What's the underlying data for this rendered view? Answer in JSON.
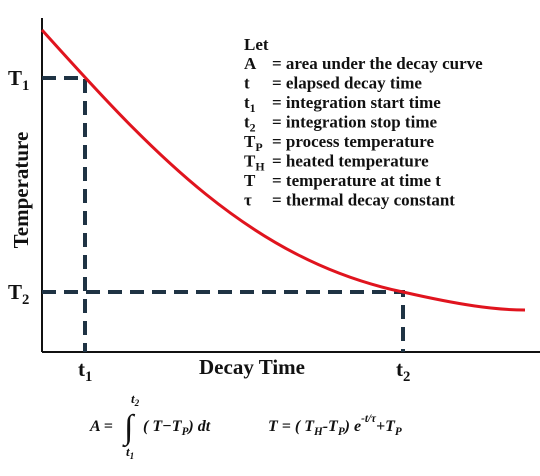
{
  "y_axis": {
    "label": "Temperature",
    "tick_1": {
      "symbol": "T",
      "sub": "1"
    },
    "tick_2": {
      "symbol": "T",
      "sub": "2"
    }
  },
  "x_axis": {
    "label": "Decay Time",
    "tick_1": {
      "symbol": "t",
      "sub": "1"
    },
    "tick_2": {
      "symbol": "t",
      "sub": "2"
    }
  },
  "legend": {
    "heading": "Let",
    "items": [
      {
        "symbol": "A",
        "sub": null,
        "text": "= area under the decay curve"
      },
      {
        "symbol": "t",
        "sub": null,
        "text": "= elapsed decay time"
      },
      {
        "symbol": "t",
        "sub": "1",
        "text": "= integration start time"
      },
      {
        "symbol": "t",
        "sub": "2",
        "text": "= integration stop time"
      },
      {
        "symbol": "T",
        "sub": "P",
        "text": "= process temperature"
      },
      {
        "symbol": "T",
        "sub": "H",
        "text": "= heated temperature"
      },
      {
        "symbol": "T",
        "sub": null,
        "text": "= temperature at time t"
      },
      {
        "symbol": "τ",
        "sub": null,
        "text": "= thermal decay constant"
      }
    ]
  },
  "formula_area": {
    "lhs": "A =",
    "integral": "∫",
    "upper": "t",
    "upper_sub": "2",
    "lower": "t",
    "lower_sub": "1",
    "body": "( T−T",
    "body_sub": "P",
    "body_end": ") dt"
  },
  "formula_temp": {
    "lhs": "T = ( T",
    "sub1": "H",
    "mid": "-T",
    "sub2": "P",
    "end": ") e",
    "exp": "-t/τ",
    "plus": "+T",
    "sub3": "P"
  }
}
